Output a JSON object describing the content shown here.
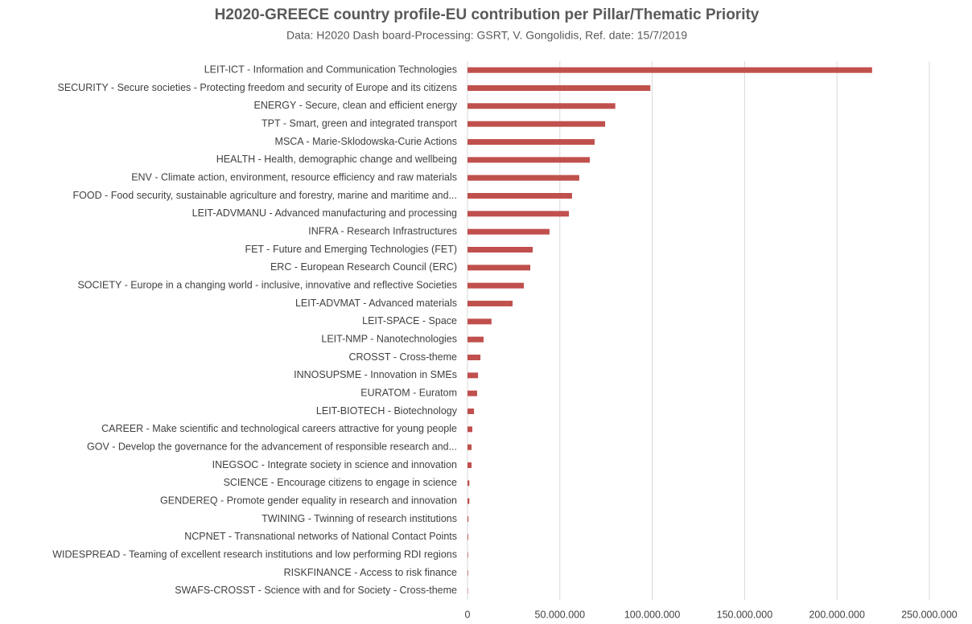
{
  "chart_data": {
    "type": "bar",
    "orientation": "horizontal",
    "title": "H2020-GREECE country profile-EU contribution per Pillar/Thematic Priority",
    "subtitle": "Data: H2020  Dash board-Processing: GSRT, V. Gongolidis, Ref. date: 15/7/2019",
    "categories": [
      "LEIT-ICT - Information and Communication Technologies",
      "SECURITY - Secure societies - Protecting freedom and security of Europe and its citizens",
      "ENERGY - Secure, clean and efficient energy",
      "TPT - Smart, green and integrated transport",
      "MSCA - Marie-Sklodowska-Curie Actions",
      "HEALTH - Health, demographic change and wellbeing",
      "ENV - Climate action, environment, resource efficiency and raw materials",
      "FOOD - Food security, sustainable agriculture and forestry, marine and maritime and...",
      "LEIT-ADVMANU - Advanced manufacturing and processing",
      "INFRA - Research Infrastructures",
      "FET - Future and Emerging Technologies (FET)",
      "ERC - European Research Council (ERC)",
      "SOCIETY - Europe in a changing world - inclusive, innovative and reflective Societies",
      "LEIT-ADVMAT - Advanced materials",
      "LEIT-SPACE - Space",
      "LEIT-NMP - Nanotechnologies",
      "CROSST - Cross-theme",
      "INNOSUPSME - Innovation in SMEs",
      "EURATOM - Euratom",
      "LEIT-BIOTECH - Biotechnology",
      "CAREER - Make scientific and technological careers attractive for young people",
      "GOV - Develop the governance for the advancement of responsible research and...",
      "INEGSOC - Integrate society in science and innovation",
      "SCIENCE - Encourage citizens to engage in science",
      "GENDEREQ - Promote gender equality in research and innovation",
      "TWINING - Twinning of research institutions",
      "NCPNET - Transnational networks of National Contact Points",
      "WIDESPREAD - Teaming of excellent research institutions and low performing RDI regions",
      "RISKFINANCE - Access to risk finance",
      "SWAFS-CROSST - Science with and for Society - Cross-theme"
    ],
    "values": [
      219000000,
      99000000,
      80000000,
      74500000,
      68800000,
      66200000,
      60500000,
      56600000,
      54900000,
      44400000,
      35300000,
      34000000,
      30500000,
      24400000,
      13000000,
      8700000,
      7000000,
      5700000,
      5200000,
      3500000,
      2600000,
      2200000,
      2200000,
      1000000,
      1000000,
      500000,
      400000,
      300000,
      300000,
      200000
    ],
    "color": "#c0504d",
    "xlim": [
      0,
      250000000
    ],
    "xticks": [
      0,
      {
        "value": 50000000,
        "label": "50.000.000"
      },
      {
        "value": 100000000,
        "label": "100.000.000"
      },
      {
        "value": 150000000,
        "label": "150.000.000"
      },
      {
        "value": 200000000,
        "label": "200.000.000"
      },
      {
        "value": 250000000,
        "label": "250.000.000"
      }
    ],
    "grid": true
  }
}
